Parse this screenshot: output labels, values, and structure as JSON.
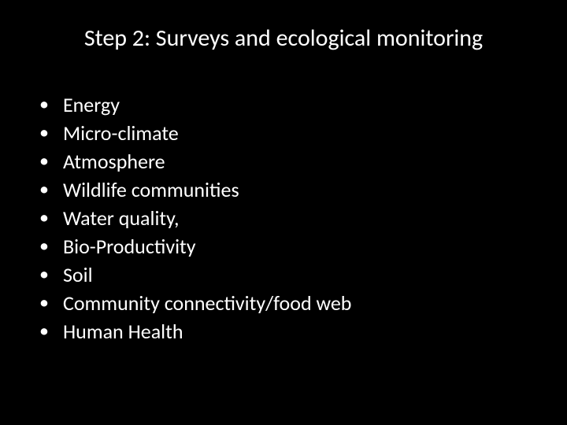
{
  "slide": {
    "title": "Step 2: Surveys and ecological monitoring",
    "bullets": [
      "Energy",
      "Micro-climate",
      "Atmosphere",
      "Wildlife communities",
      "Water quality,",
      "Bio-Productivity",
      "Soil",
      "Community connectivity/food web",
      "Human Health"
    ],
    "colors": {
      "background": "#000000",
      "text": "#ffffff"
    },
    "typography": {
      "title_fontsize": 30,
      "bullet_fontsize": 26,
      "font_family": "Calibri"
    }
  }
}
